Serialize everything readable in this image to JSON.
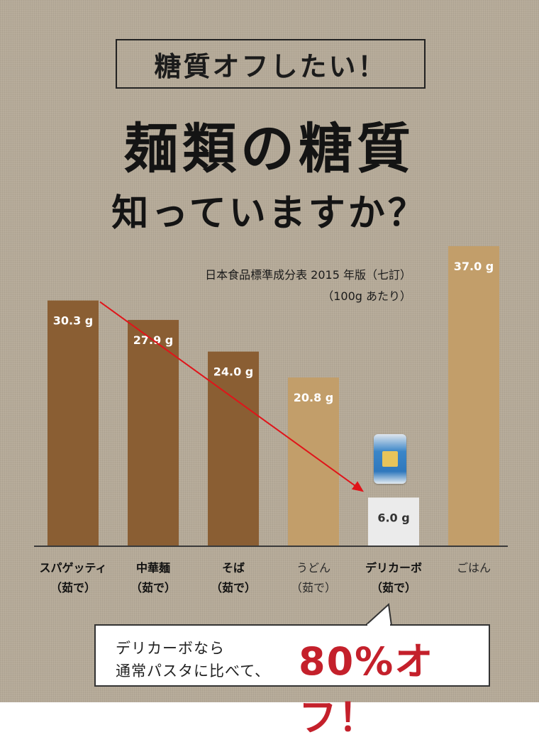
{
  "header": {
    "tag": "糖質オフしたい！",
    "title": "麺類の糖質",
    "subtitle": "知っていますか？"
  },
  "source": {
    "line1": "日本食品標準成分表 2015 年版（七訂）",
    "line2": "（100g あたり）"
  },
  "chart_data": {
    "type": "bar",
    "categories": [
      {
        "line1": "スパゲッティ",
        "line2": "（茹で）"
      },
      {
        "line1": "中華麺",
        "line2": "（茹で）"
      },
      {
        "line1": "そば",
        "line2": "（茹で）"
      },
      {
        "line1": "うどん",
        "line2": "（茹で）"
      },
      {
        "line1": "デリカーボ",
        "line2": "（茹で）"
      },
      {
        "line1": "ごはん",
        "line2": ""
      }
    ],
    "values": [
      30.3,
      27.9,
      24.0,
      20.8,
      6.0,
      37.0
    ],
    "value_labels": [
      "30.3 g",
      "27.9 g",
      "24.0 g",
      "20.8 g",
      "6.0 g",
      "37.0 g"
    ],
    "unit": "g",
    "ylim": [
      0,
      37.0
    ],
    "colors": [
      "#8a5e33",
      "#8a5e33",
      "#8a5e33",
      "#c29e6a",
      "#ebebeb",
      "#c29e6a"
    ],
    "label_colors": [
      "#ffffff",
      "#ffffff",
      "#ffffff",
      "#ffffff",
      "#333333",
      "#ffffff"
    ],
    "arrow": {
      "from": "スパゲッティ",
      "to": "デリカーボ",
      "color": "#e0141a"
    }
  },
  "callout": {
    "line1": "デリカーボなら",
    "line2": "通常パスタに比べて、",
    "highlight": "80%オフ！"
  }
}
